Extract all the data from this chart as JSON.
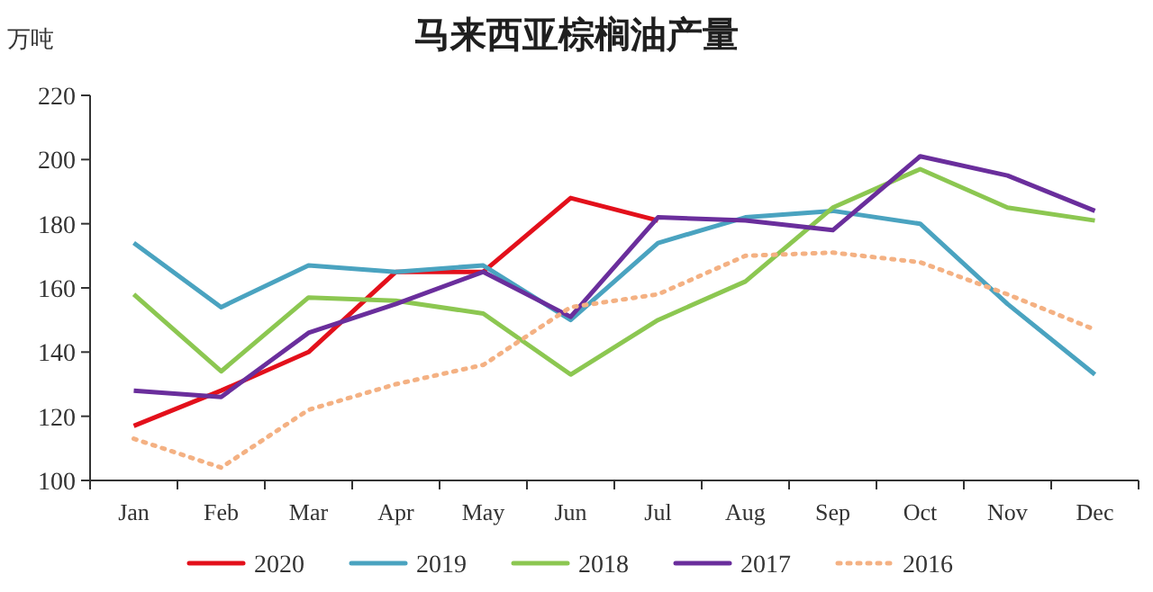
{
  "chart_data": {
    "type": "line",
    "title": "马来西亚棕榈油产量",
    "ylabel": "万吨",
    "categories": [
      "Jan",
      "Feb",
      "Mar",
      "Apr",
      "May",
      "Jun",
      "Jul",
      "Aug",
      "Sep",
      "Oct",
      "Nov",
      "Dec"
    ],
    "series": [
      {
        "name": "2020",
        "color": "#e3101b",
        "values": [
          117,
          128,
          140,
          165,
          165,
          188,
          181,
          null,
          null,
          null,
          null,
          null
        ]
      },
      {
        "name": "2019",
        "color": "#4aa3c0",
        "values": [
          174,
          154,
          167,
          165,
          167,
          150,
          174,
          182,
          184,
          180,
          155,
          133
        ]
      },
      {
        "name": "2018",
        "color": "#8cc751",
        "values": [
          158,
          134,
          157,
          156,
          152,
          133,
          150,
          162,
          185,
          197,
          185,
          181
        ]
      },
      {
        "name": "2017",
        "color": "#6a2e9c",
        "values": [
          128,
          126,
          146,
          155,
          165,
          151,
          182,
          181,
          178,
          201,
          195,
          184
        ]
      },
      {
        "name": "2016",
        "color": "#f4b183",
        "line_style": "dotted",
        "values": [
          113,
          104,
          122,
          130,
          136,
          154,
          158,
          170,
          171,
          168,
          158,
          147
        ]
      }
    ],
    "ylim": [
      100,
      220
    ],
    "yticks": [
      100,
      120,
      140,
      160,
      180,
      200,
      220
    ],
    "legend": "bottom"
  }
}
